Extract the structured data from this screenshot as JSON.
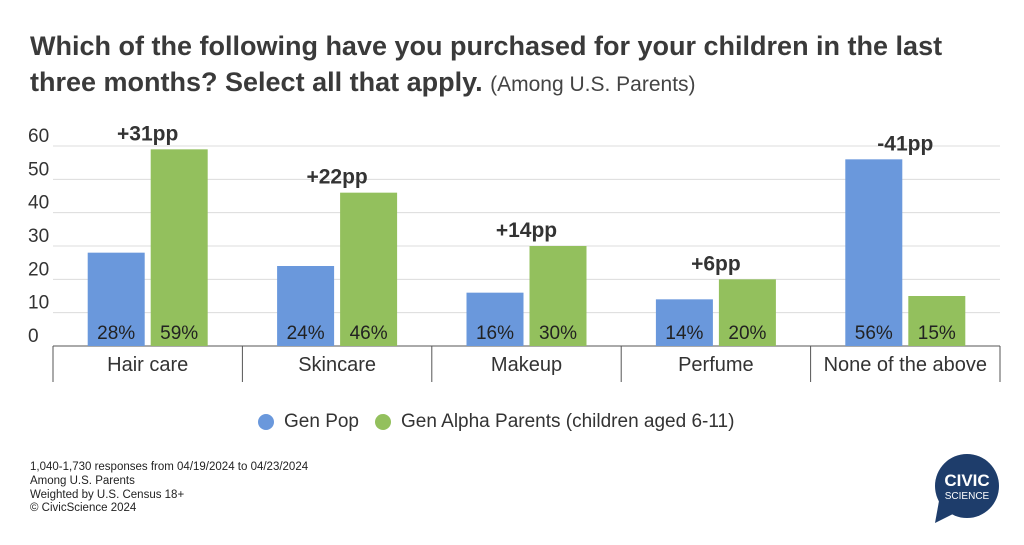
{
  "title": {
    "main": "Which of the following have you purchased for your children in the last three months? Select all that apply.",
    "sub": "(Among U.S. Parents)"
  },
  "chart_data": {
    "type": "bar",
    "categories": [
      "Hair care",
      "Skincare",
      "Makeup",
      "Perfume",
      "None of the above"
    ],
    "series": [
      {
        "name": "Gen Pop",
        "color": "#6a98dc",
        "values": [
          28,
          24,
          16,
          14,
          56
        ],
        "labels": [
          "28%",
          "24%",
          "16%",
          "14%",
          "56%"
        ]
      },
      {
        "name": "Gen Alpha Parents (children aged 6-11)",
        "color": "#93c05d",
        "values": [
          59,
          46,
          30,
          20,
          15
        ],
        "labels": [
          "59%",
          "46%",
          "30%",
          "20%",
          "15%"
        ]
      }
    ],
    "annotations": [
      "+31pp",
      "+22pp",
      "+14pp",
      "+6pp",
      "-41pp"
    ],
    "yticks": [
      "0",
      "10",
      "20",
      "30",
      "40",
      "50",
      "60"
    ],
    "ylim": [
      0,
      60
    ],
    "grid": true,
    "legend": "bottom"
  },
  "footnote": [
    "1,040-1,730 responses from 04/19/2024 to 04/23/2024",
    "Among U.S. Parents",
    "Weighted by U.S. Census 18+",
    "© CivicScience 2024"
  ],
  "logo": {
    "line1": "CIVIC",
    "line2": "SCIENCE",
    "color": "#1e3d6b"
  }
}
